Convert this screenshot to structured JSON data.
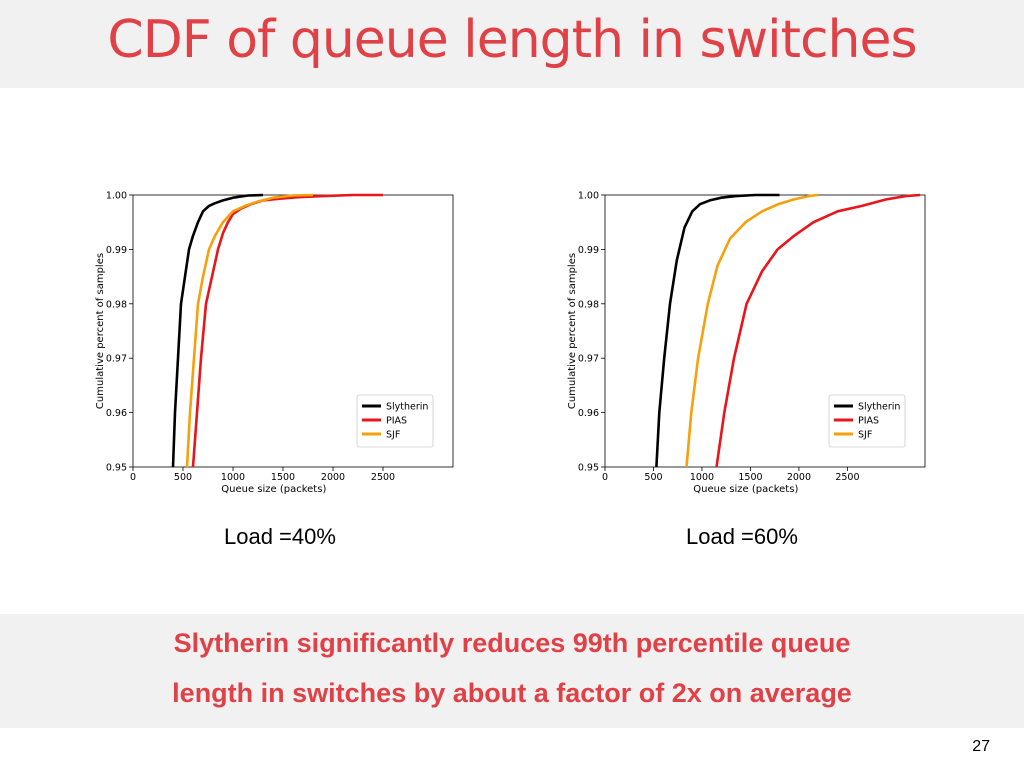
{
  "slide": {
    "title": "CDF of queue length in switches",
    "takeaway_line1": "Slytherin significantly reduces 99th percentile queue",
    "takeaway_line2": "length in switches by about a factor of 2x on average",
    "page_number": "27"
  },
  "colors": {
    "title": "#e04146",
    "band": "#f1f1f1"
  },
  "chart_data": [
    {
      "type": "line",
      "caption": "Load =40%",
      "xlabel": "Queue size (packets)",
      "ylabel": "Cumulative percent of samples",
      "xlim": [
        0,
        3200
      ],
      "ylim": [
        0.95,
        1.0
      ],
      "xticks": [
        0,
        500,
        1000,
        1500,
        2000,
        2500
      ],
      "xtick_labels": [
        "0",
        "500",
        "1000",
        "1500",
        "2000",
        "2500"
      ],
      "yticks": [
        0.95,
        0.96,
        0.97,
        0.98,
        0.99,
        1.0
      ],
      "ytick_labels": [
        "0.95",
        "0.96",
        "0.97",
        "0.98",
        "0.99",
        "1.00"
      ],
      "grid": false,
      "legend_position": "lower-right",
      "series": [
        {
          "name": "Slytherin",
          "color": "#000000",
          "x": [
            400,
            420,
            450,
            480,
            520,
            560,
            600,
            650,
            700,
            760,
            820,
            900,
            1000,
            1150,
            1300
          ],
          "y": [
            0.95,
            0.96,
            0.97,
            0.98,
            0.985,
            0.99,
            0.9925,
            0.995,
            0.997,
            0.998,
            0.9985,
            0.999,
            0.9995,
            0.9999,
            1.0
          ]
        },
        {
          "name": "PIAS",
          "color": "#e8151b",
          "x": [
            600,
            640,
            680,
            730,
            790,
            850,
            900,
            950,
            1000,
            1080,
            1180,
            1300,
            1450,
            1650,
            1900,
            2200,
            2500
          ],
          "y": [
            0.95,
            0.96,
            0.97,
            0.98,
            0.985,
            0.99,
            0.993,
            0.995,
            0.9965,
            0.9975,
            0.9983,
            0.999,
            0.9993,
            0.9996,
            0.9998,
            1.0,
            1.0
          ]
        },
        {
          "name": "SJF",
          "color": "#f5a00c",
          "x": [
            540,
            570,
            610,
            650,
            700,
            760,
            820,
            900,
            1000,
            1120,
            1250,
            1400,
            1600,
            1800
          ],
          "y": [
            0.95,
            0.96,
            0.97,
            0.98,
            0.985,
            0.99,
            0.9925,
            0.995,
            0.997,
            0.998,
            0.9988,
            0.9995,
            0.9999,
            1.0
          ]
        }
      ]
    },
    {
      "type": "line",
      "caption": "Load =60%",
      "xlabel": "Queue size (packets)",
      "ylabel": "Cumulative percent of samples",
      "xlim": [
        0,
        3300
      ],
      "ylim": [
        0.95,
        1.0
      ],
      "xticks": [
        0,
        500,
        1000,
        1500,
        2000,
        2500
      ],
      "xtick_labels": [
        "0",
        "500",
        "1000",
        "1500",
        "2000",
        "2500"
      ],
      "yticks": [
        0.95,
        0.96,
        0.97,
        0.98,
        0.99,
        1.0
      ],
      "ytick_labels": [
        "0.95",
        "0.96",
        "0.97",
        "0.98",
        "0.99",
        "1.00"
      ],
      "grid": false,
      "legend_position": "lower-right",
      "series": [
        {
          "name": "Slytherin",
          "color": "#000000",
          "x": [
            530,
            560,
            610,
            670,
            740,
            820,
            900,
            980,
            1080,
            1200,
            1350,
            1550,
            1800
          ],
          "y": [
            0.95,
            0.96,
            0.97,
            0.98,
            0.988,
            0.994,
            0.997,
            0.9983,
            0.999,
            0.9995,
            0.9998,
            1.0,
            1.0
          ]
        },
        {
          "name": "PIAS",
          "color": "#e8151b",
          "x": [
            1150,
            1230,
            1330,
            1460,
            1620,
            1780,
            1950,
            2150,
            2400,
            2650,
            2900,
            3100,
            3250
          ],
          "y": [
            0.95,
            0.96,
            0.97,
            0.98,
            0.986,
            0.99,
            0.9925,
            0.995,
            0.997,
            0.998,
            0.9992,
            0.9998,
            1.0
          ]
        },
        {
          "name": "SJF",
          "color": "#f5a00c",
          "x": [
            840,
            890,
            960,
            1060,
            1160,
            1290,
            1450,
            1620,
            1800,
            1950,
            2100,
            2200
          ],
          "y": [
            0.95,
            0.96,
            0.97,
            0.98,
            0.987,
            0.992,
            0.995,
            0.997,
            0.9984,
            0.9992,
            0.9998,
            1.0
          ]
        }
      ]
    }
  ]
}
